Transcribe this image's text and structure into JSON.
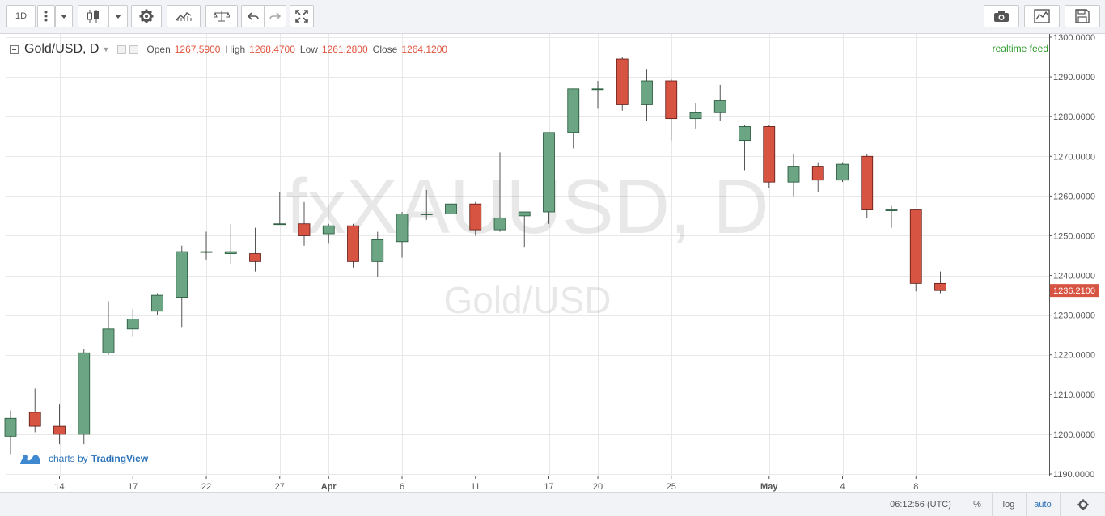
{
  "toolbar": {
    "interval_label": "1D",
    "buttons": [
      "more-vertical-icon",
      "dropdown-icon",
      "candles-icon",
      "dropdown-icon",
      "gear-icon",
      "indicators-icon",
      "compare-icon",
      "undo-icon",
      "redo-icon",
      "fullscreen-icon",
      "camera-icon",
      "chart-style-icon",
      "save-icon"
    ]
  },
  "legend": {
    "symbol": "Gold/USD, D",
    "open_label": "Open",
    "open_value": "1267.5900",
    "high_label": "High",
    "high_value": "1268.4700",
    "low_label": "Low",
    "low_value": "1261.2800",
    "close_label": "Close",
    "close_value": "1264.1200"
  },
  "realtime_label": "realtime feed",
  "watermark": {
    "main": "fxXAUUSD, D",
    "sub": "Gold/USD"
  },
  "branding": {
    "prefix": "charts by",
    "brand": "TradingView"
  },
  "bottom": {
    "time": "06:12:56 (UTC)",
    "percent": "%",
    "log": "log",
    "auto": "auto"
  },
  "colors": {
    "up": "#6ba583",
    "down": "#d75442",
    "up_border": "#225437",
    "down_border": "#5b1a13",
    "price_tag": "#d75442",
    "grid": "#e8e8e8"
  },
  "chart_data": {
    "type": "candlestick",
    "y_axis": {
      "min": 1190,
      "max": 1300,
      "step": 10,
      "decimals": 4
    },
    "x_ticks": [
      "14",
      "17",
      "22",
      "27",
      "Apr",
      "6",
      "11",
      "17",
      "20",
      "25",
      "May",
      "4",
      "8"
    ],
    "last_price": "1236.2100",
    "candles": [
      {
        "o": 1199.5,
        "h": 1206.0,
        "l": 1195.0,
        "c": 1204.0
      },
      {
        "o": 1205.5,
        "h": 1211.5,
        "l": 1200.5,
        "c": 1202.0
      },
      {
        "o": 1202.0,
        "h": 1207.5,
        "l": 1197.5,
        "c": 1200.0
      },
      {
        "o": 1200.0,
        "h": 1221.5,
        "l": 1197.5,
        "c": 1220.5
      },
      {
        "o": 1220.5,
        "h": 1233.5,
        "l": 1220.0,
        "c": 1226.5
      },
      {
        "o": 1226.5,
        "h": 1231.5,
        "l": 1224.5,
        "c": 1229.0
      },
      {
        "o": 1231.0,
        "h": 1235.5,
        "l": 1230.0,
        "c": 1235.0
      },
      {
        "o": 1234.5,
        "h": 1247.5,
        "l": 1227.0,
        "c": 1246.0
      },
      {
        "o": 1246.0,
        "h": 1251.0,
        "l": 1244.0,
        "c": 1246.0
      },
      {
        "o": 1245.5,
        "h": 1253.0,
        "l": 1243.0,
        "c": 1246.0
      },
      {
        "o": 1245.5,
        "h": 1252.0,
        "l": 1241.0,
        "c": 1243.5
      },
      {
        "o": 1253.0,
        "h": 1261.0,
        "l": 1253.0,
        "c": 1253.0
      },
      {
        "o": 1253.0,
        "h": 1258.5,
        "l": 1247.5,
        "c": 1250.0
      },
      {
        "o": 1250.5,
        "h": 1253.0,
        "l": 1248.0,
        "c": 1252.5
      },
      {
        "o": 1252.5,
        "h": 1253.0,
        "l": 1242.0,
        "c": 1243.5
      },
      {
        "o": 1243.5,
        "h": 1251.0,
        "l": 1239.5,
        "c": 1249.0
      },
      {
        "o": 1248.5,
        "h": 1256.0,
        "l": 1244.5,
        "c": 1255.5
      },
      {
        "o": 1255.5,
        "h": 1261.5,
        "l": 1254.0,
        "c": 1255.5
      },
      {
        "o": 1255.5,
        "h": 1258.5,
        "l": 1243.5,
        "c": 1258.0
      },
      {
        "o": 1258.0,
        "h": 1258.5,
        "l": 1250.0,
        "c": 1251.5
      },
      {
        "o": 1251.5,
        "h": 1271.0,
        "l": 1251.0,
        "c": 1254.5
      },
      {
        "o": 1255.0,
        "h": 1256.0,
        "l": 1247.0,
        "c": 1256.0
      },
      {
        "o": 1256.0,
        "h": 1276.0,
        "l": 1253.0,
        "c": 1276.0
      },
      {
        "o": 1276.0,
        "h": 1287.0,
        "l": 1272.0,
        "c": 1287.0
      },
      {
        "o": 1287.0,
        "h": 1289.0,
        "l": 1282.0,
        "c": 1287.0
      },
      {
        "o": 1294.5,
        "h": 1295.0,
        "l": 1281.5,
        "c": 1283.0
      },
      {
        "o": 1283.0,
        "h": 1292.0,
        "l": 1279.0,
        "c": 1289.0
      },
      {
        "o": 1289.0,
        "h": 1289.5,
        "l": 1274.0,
        "c": 1279.5
      },
      {
        "o": 1279.5,
        "h": 1283.5,
        "l": 1277.0,
        "c": 1281.0
      },
      {
        "o": 1281.0,
        "h": 1288.0,
        "l": 1279.0,
        "c": 1284.0
      },
      {
        "o": 1274.0,
        "h": 1278.0,
        "l": 1266.5,
        "c": 1277.5
      },
      {
        "o": 1277.5,
        "h": 1278.0,
        "l": 1262.0,
        "c": 1263.5
      },
      {
        "o": 1263.5,
        "h": 1270.5,
        "l": 1260.0,
        "c": 1267.5
      },
      {
        "o": 1267.5,
        "h": 1268.5,
        "l": 1261.0,
        "c": 1264.0
      },
      {
        "o": 1264.0,
        "h": 1268.5,
        "l": 1263.5,
        "c": 1268.0
      },
      {
        "o": 1270.0,
        "h": 1270.5,
        "l": 1254.5,
        "c": 1256.5
      },
      {
        "o": 1256.5,
        "h": 1257.5,
        "l": 1252.0,
        "c": 1256.5
      },
      {
        "o": 1256.5,
        "h": 1256.5,
        "l": 1236.0,
        "c": 1238.0
      },
      {
        "o": 1238.0,
        "h": 1241.0,
        "l": 1235.5,
        "c": 1236.2
      }
    ]
  }
}
